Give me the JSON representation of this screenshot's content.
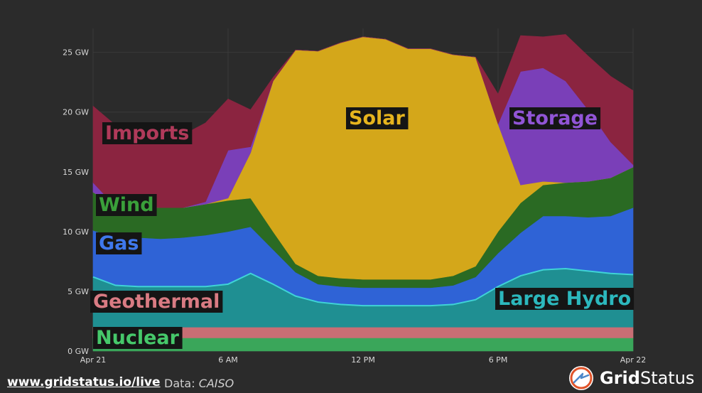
{
  "chart_data": {
    "type": "area",
    "stacked": true,
    "grid": true,
    "ylim": [
      0,
      27
    ],
    "y_unit": "GW",
    "y_ticks": [
      {
        "value": 0,
        "label": "0 GW"
      },
      {
        "value": 5,
        "label": "5 GW"
      },
      {
        "value": 10,
        "label": "10 GW"
      },
      {
        "value": 15,
        "label": "15 GW"
      },
      {
        "value": 20,
        "label": "20 GW"
      },
      {
        "value": 25,
        "label": "25 GW"
      }
    ],
    "x_ticks": [
      {
        "hour": 0,
        "label": "Apr 21"
      },
      {
        "hour": 6,
        "label": "6 AM"
      },
      {
        "hour": 12,
        "label": "12 PM"
      },
      {
        "hour": 18,
        "label": "6 PM"
      },
      {
        "hour": 24,
        "label": "Apr 22"
      }
    ],
    "x_hours": [
      0,
      1,
      2,
      3,
      4,
      5,
      6,
      7,
      8,
      9,
      10,
      11,
      12,
      13,
      14,
      15,
      16,
      17,
      18,
      19,
      20,
      21,
      22,
      23,
      24
    ],
    "series": [
      {
        "name": "Nuclear",
        "color": "#3aa65a",
        "text_color": "#46c86a",
        "values": [
          1.1,
          1.1,
          1.1,
          1.1,
          1.1,
          1.1,
          1.1,
          1.1,
          1.1,
          1.1,
          1.1,
          1.1,
          1.1,
          1.1,
          1.1,
          1.1,
          1.1,
          1.1,
          1.1,
          1.1,
          1.1,
          1.1,
          1.1,
          1.1,
          1.1
        ]
      },
      {
        "name": "Geothermal",
        "color": "#c86e74",
        "text_color": "#d97b83",
        "values": [
          0.9,
          0.9,
          0.9,
          0.9,
          0.9,
          0.9,
          0.9,
          0.9,
          0.9,
          0.9,
          0.9,
          0.9,
          0.9,
          0.9,
          0.9,
          0.9,
          0.9,
          0.9,
          0.9,
          0.9,
          0.9,
          0.9,
          0.9,
          0.9,
          0.9
        ]
      },
      {
        "name": "Large Hydro",
        "color": "#1f8f92",
        "text_color": "#2cb8bd",
        "values": [
          4.2,
          3.5,
          3.4,
          3.4,
          3.4,
          3.4,
          3.6,
          4.5,
          3.6,
          2.6,
          2.1,
          1.9,
          1.8,
          1.8,
          1.8,
          1.8,
          1.9,
          2.3,
          3.4,
          4.3,
          4.8,
          4.9,
          4.7,
          4.5,
          4.4
        ]
      },
      {
        "name": "Gas",
        "color": "#2f63d6",
        "text_color": "#3f78ec",
        "values": [
          3.9,
          4.0,
          4.1,
          4.0,
          4.1,
          4.3,
          4.4,
          3.9,
          2.9,
          2.0,
          1.5,
          1.5,
          1.5,
          1.5,
          1.5,
          1.5,
          1.6,
          1.9,
          2.8,
          3.6,
          4.5,
          4.4,
          4.5,
          4.8,
          5.6
        ]
      },
      {
        "name": "Wind",
        "color": "#2a6a23",
        "text_color": "#3aa03a",
        "values": [
          3.2,
          2.6,
          2.6,
          2.6,
          2.5,
          2.6,
          2.6,
          2.4,
          1.5,
          0.7,
          0.7,
          0.7,
          0.7,
          0.7,
          0.7,
          0.7,
          0.8,
          0.9,
          1.8,
          2.5,
          2.6,
          2.8,
          3.0,
          3.2,
          3.4
        ]
      },
      {
        "name": "Solar",
        "color": "#d4a71a",
        "text_color": "#e6b41e",
        "values": [
          0,
          0,
          0,
          0,
          0,
          0,
          0.2,
          3.8,
          12.6,
          17.9,
          18.8,
          19.7,
          20.3,
          20.1,
          19.3,
          19.3,
          18.5,
          17.5,
          9.0,
          1.5,
          0.3,
          0,
          0,
          0,
          0
        ]
      },
      {
        "name": "Storage",
        "color": "#7a3fb8",
        "text_color": "#9155d6",
        "values": [
          0.8,
          0,
          0,
          0,
          0,
          0.2,
          4.0,
          0.5,
          0,
          0,
          0,
          0,
          0,
          0,
          0,
          0,
          0,
          0,
          0,
          9.5,
          9.5,
          8.5,
          6.0,
          3.0,
          0.2
        ]
      },
      {
        "name": "Imports",
        "color": "#8b2440",
        "text_color": "#b03a5a",
        "values": [
          6.4,
          6.8,
          5.8,
          5.6,
          6.1,
          6.6,
          4.3,
          3.1,
          0.3,
          0,
          0,
          0,
          0,
          0,
          0,
          0,
          0,
          0,
          2.5,
          3.0,
          2.6,
          3.9,
          4.5,
          5.5,
          6.2
        ]
      }
    ]
  },
  "footer": {
    "link_text": "www.gridstatus.io/live",
    "source_label": "Data:",
    "source_name": "CAISO"
  },
  "brand": {
    "name_bold": "Grid",
    "name_regular": "Status",
    "colors": {
      "ring": "#e0542a",
      "bg": "#ffffff",
      "bolt": "#4e88c9"
    }
  }
}
